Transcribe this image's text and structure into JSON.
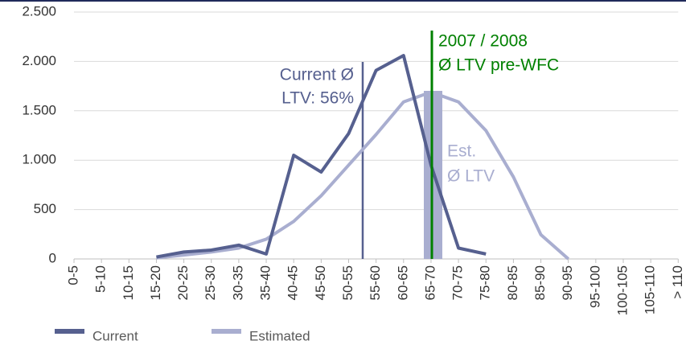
{
  "chart_data": {
    "type": "line",
    "categories": [
      "0-5",
      "5-10",
      "10-15",
      "15-20",
      "20-25",
      "25-30",
      "30-35",
      "35-40",
      "40-45",
      "45-50",
      "50-55",
      "55-60",
      "60-65",
      "65-70",
      "70-75",
      "75-80",
      "80-85",
      "85-90",
      "90-95",
      "95-100",
      "100-105",
      "105-110",
      "> 110"
    ],
    "series": [
      {
        "name": "Current",
        "color": "#56608f",
        "values": [
          null,
          null,
          null,
          20,
          70,
          90,
          140,
          50,
          1050,
          880,
          1270,
          1910,
          2060,
          950,
          110,
          50,
          null,
          null,
          null,
          null,
          null,
          null,
          null
        ]
      },
      {
        "name": "Estimated",
        "color": "#a9aed0",
        "values": [
          null,
          null,
          null,
          10,
          40,
          70,
          110,
          200,
          380,
          640,
          950,
          1260,
          1590,
          1690,
          1590,
          1300,
          830,
          245,
          0,
          null,
          null,
          null,
          null
        ]
      }
    ],
    "ylim": [
      0,
      2500
    ],
    "yticks": [
      0,
      500,
      {
        "value": 1000,
        "label": "1.000"
      },
      {
        "value": 1500,
        "label": "1.500"
      },
      {
        "value": 2000,
        "label": "2.000"
      },
      {
        "value": 2500,
        "label": "2.500"
      }
    ],
    "grid": true,
    "legend": "bottom",
    "annotations": [
      "Current Ø",
      "LTV: 56%",
      "2007 / 2008",
      "Ø LTV pre-WFC",
      "Est.",
      "Ø LTV"
    ]
  }
}
